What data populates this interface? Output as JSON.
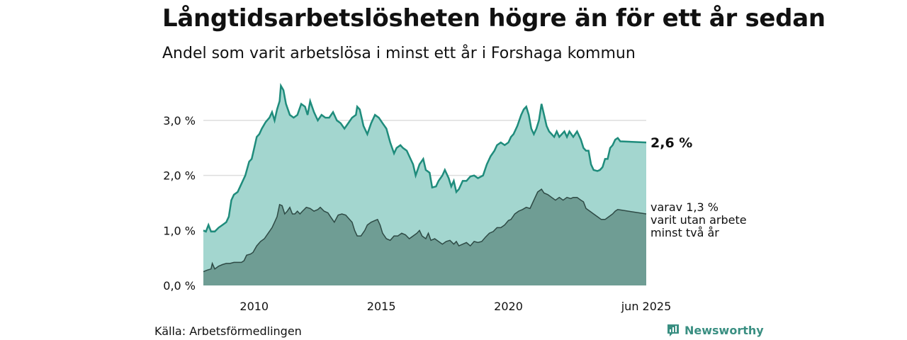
{
  "header": {
    "title": "Långtidsarbetslösheten högre än för ett år sedan",
    "subtitle": "Andel som varit arbetslösa i minst ett år i Forshaga kommun"
  },
  "footer": {
    "source": "Källa: Arbetsförmedlingen",
    "brand": "Newsworthy",
    "brand_icon": "bar-chart-bubble-icon"
  },
  "colors": {
    "series1_fill": "#a3d6cf",
    "series1_line": "#1f8c7c",
    "series2_fill": "#6f9d94",
    "series2_line": "#2e4a45",
    "grid": "#dddddd",
    "brand": "#3a8f82"
  },
  "chart_data": {
    "type": "area",
    "xlim": [
      2008.0,
      2025.42
    ],
    "ylim": [
      0,
      3.0
    ],
    "grid": true,
    "y_ticks": [
      {
        "value": 0,
        "label": "0,0 %"
      },
      {
        "value": 1,
        "label": "1,0 %"
      },
      {
        "value": 2,
        "label": "2,0 %"
      },
      {
        "value": 3,
        "label": "3,0 %"
      }
    ],
    "x_ticks": [
      {
        "value": 2010,
        "label": "2010"
      },
      {
        "value": 2015,
        "label": "2015"
      },
      {
        "value": 2020,
        "label": "2020"
      },
      {
        "value": 2025.42,
        "label": "jun 2025"
      }
    ],
    "end_label": "2,6 %",
    "sub_label_lines": [
      "varav 1,3 %",
      "varit utan arbete",
      "minst två år"
    ],
    "series": [
      {
        "points": [
          [
            2008.0,
            1.0
          ],
          [
            2008.1,
            0.98
          ],
          [
            2008.2,
            1.1
          ],
          [
            2008.3,
            0.98
          ],
          [
            2008.45,
            0.98
          ],
          [
            2008.6,
            1.05
          ],
          [
            2008.75,
            1.1
          ],
          [
            2008.9,
            1.15
          ],
          [
            2009.0,
            1.25
          ],
          [
            2009.1,
            1.55
          ],
          [
            2009.2,
            1.65
          ],
          [
            2009.35,
            1.7
          ],
          [
            2009.5,
            1.85
          ],
          [
            2009.65,
            2.0
          ],
          [
            2009.8,
            2.25
          ],
          [
            2009.9,
            2.3
          ],
          [
            2010.0,
            2.5
          ],
          [
            2010.1,
            2.7
          ],
          [
            2010.2,
            2.75
          ],
          [
            2010.3,
            2.85
          ],
          [
            2010.45,
            2.97
          ],
          [
            2010.6,
            3.05
          ],
          [
            2010.7,
            3.15
          ],
          [
            2010.8,
            3.0
          ],
          [
            2010.9,
            3.2
          ],
          [
            2011.0,
            3.35
          ],
          [
            2011.05,
            3.63
          ],
          [
            2011.15,
            3.55
          ],
          [
            2011.25,
            3.3
          ],
          [
            2011.4,
            3.1
          ],
          [
            2011.55,
            3.05
          ],
          [
            2011.7,
            3.1
          ],
          [
            2011.85,
            3.3
          ],
          [
            2012.0,
            3.25
          ],
          [
            2012.1,
            3.1
          ],
          [
            2012.2,
            3.35
          ],
          [
            2012.35,
            3.15
          ],
          [
            2012.5,
            3.0
          ],
          [
            2012.65,
            3.1
          ],
          [
            2012.8,
            3.05
          ],
          [
            2012.95,
            3.05
          ],
          [
            2013.1,
            3.15
          ],
          [
            2013.25,
            3.0
          ],
          [
            2013.4,
            2.95
          ],
          [
            2013.55,
            2.85
          ],
          [
            2013.7,
            2.95
          ],
          [
            2013.85,
            3.05
          ],
          [
            2014.0,
            3.1
          ],
          [
            2014.05,
            3.25
          ],
          [
            2014.15,
            3.2
          ],
          [
            2014.3,
            2.9
          ],
          [
            2014.45,
            2.75
          ],
          [
            2014.6,
            2.95
          ],
          [
            2014.75,
            3.1
          ],
          [
            2014.9,
            3.05
          ],
          [
            2015.05,
            2.95
          ],
          [
            2015.2,
            2.85
          ],
          [
            2015.35,
            2.6
          ],
          [
            2015.5,
            2.4
          ],
          [
            2015.6,
            2.5
          ],
          [
            2015.75,
            2.55
          ],
          [
            2015.85,
            2.5
          ],
          [
            2016.0,
            2.45
          ],
          [
            2016.1,
            2.35
          ],
          [
            2016.25,
            2.2
          ],
          [
            2016.35,
            2.0
          ],
          [
            2016.5,
            2.2
          ],
          [
            2016.65,
            2.3
          ],
          [
            2016.75,
            2.1
          ],
          [
            2016.9,
            2.05
          ],
          [
            2017.0,
            1.78
          ],
          [
            2017.15,
            1.8
          ],
          [
            2017.25,
            1.9
          ],
          [
            2017.4,
            2.0
          ],
          [
            2017.5,
            2.1
          ],
          [
            2017.65,
            1.95
          ],
          [
            2017.75,
            1.8
          ],
          [
            2017.85,
            1.9
          ],
          [
            2017.95,
            1.7
          ],
          [
            2018.05,
            1.75
          ],
          [
            2018.2,
            1.9
          ],
          [
            2018.35,
            1.9
          ],
          [
            2018.5,
            1.98
          ],
          [
            2018.65,
            2.0
          ],
          [
            2018.8,
            1.95
          ],
          [
            2019.0,
            2.0
          ],
          [
            2019.15,
            2.2
          ],
          [
            2019.3,
            2.35
          ],
          [
            2019.45,
            2.45
          ],
          [
            2019.55,
            2.55
          ],
          [
            2019.7,
            2.6
          ],
          [
            2019.85,
            2.55
          ],
          [
            2020.0,
            2.6
          ],
          [
            2020.1,
            2.7
          ],
          [
            2020.2,
            2.75
          ],
          [
            2020.35,
            2.9
          ],
          [
            2020.5,
            3.1
          ],
          [
            2020.6,
            3.2
          ],
          [
            2020.7,
            3.25
          ],
          [
            2020.8,
            3.1
          ],
          [
            2020.9,
            2.85
          ],
          [
            2021.0,
            2.75
          ],
          [
            2021.1,
            2.85
          ],
          [
            2021.2,
            3.0
          ],
          [
            2021.3,
            3.3
          ],
          [
            2021.4,
            3.1
          ],
          [
            2021.5,
            2.9
          ],
          [
            2021.6,
            2.8
          ],
          [
            2021.7,
            2.75
          ],
          [
            2021.8,
            2.7
          ],
          [
            2021.9,
            2.8
          ],
          [
            2022.0,
            2.7
          ],
          [
            2022.1,
            2.75
          ],
          [
            2022.2,
            2.8
          ],
          [
            2022.3,
            2.7
          ],
          [
            2022.4,
            2.8
          ],
          [
            2022.55,
            2.7
          ],
          [
            2022.7,
            2.8
          ],
          [
            2022.85,
            2.65
          ],
          [
            2022.95,
            2.5
          ],
          [
            2023.05,
            2.45
          ],
          [
            2023.15,
            2.45
          ],
          [
            2023.25,
            2.2
          ],
          [
            2023.35,
            2.1
          ],
          [
            2023.5,
            2.08
          ],
          [
            2023.6,
            2.1
          ],
          [
            2023.7,
            2.15
          ],
          [
            2023.8,
            2.3
          ],
          [
            2023.9,
            2.3
          ],
          [
            2024.0,
            2.5
          ],
          [
            2024.1,
            2.55
          ],
          [
            2024.2,
            2.65
          ],
          [
            2024.3,
            2.68
          ],
          [
            2024.4,
            2.62
          ],
          [
            2025.42,
            2.6
          ]
        ]
      },
      {
        "points": [
          [
            2008.0,
            0.25
          ],
          [
            2008.15,
            0.28
          ],
          [
            2008.3,
            0.3
          ],
          [
            2008.35,
            0.4
          ],
          [
            2008.45,
            0.3
          ],
          [
            2008.6,
            0.35
          ],
          [
            2008.75,
            0.38
          ],
          [
            2008.9,
            0.4
          ],
          [
            2009.05,
            0.4
          ],
          [
            2009.2,
            0.42
          ],
          [
            2009.35,
            0.42
          ],
          [
            2009.5,
            0.42
          ],
          [
            2009.6,
            0.45
          ],
          [
            2009.7,
            0.55
          ],
          [
            2009.85,
            0.57
          ],
          [
            2009.95,
            0.6
          ],
          [
            2010.1,
            0.72
          ],
          [
            2010.25,
            0.8
          ],
          [
            2010.4,
            0.85
          ],
          [
            2010.55,
            0.95
          ],
          [
            2010.7,
            1.05
          ],
          [
            2010.8,
            1.15
          ],
          [
            2010.9,
            1.25
          ],
          [
            2011.0,
            1.47
          ],
          [
            2011.1,
            1.45
          ],
          [
            2011.2,
            1.3
          ],
          [
            2011.3,
            1.35
          ],
          [
            2011.4,
            1.42
          ],
          [
            2011.5,
            1.3
          ],
          [
            2011.6,
            1.3
          ],
          [
            2011.7,
            1.35
          ],
          [
            2011.8,
            1.3
          ],
          [
            2011.9,
            1.35
          ],
          [
            2012.05,
            1.42
          ],
          [
            2012.2,
            1.4
          ],
          [
            2012.35,
            1.35
          ],
          [
            2012.5,
            1.38
          ],
          [
            2012.6,
            1.42
          ],
          [
            2012.75,
            1.35
          ],
          [
            2012.9,
            1.32
          ],
          [
            2013.0,
            1.25
          ],
          [
            2013.15,
            1.15
          ],
          [
            2013.3,
            1.28
          ],
          [
            2013.45,
            1.3
          ],
          [
            2013.6,
            1.28
          ],
          [
            2013.75,
            1.2
          ],
          [
            2013.85,
            1.15
          ],
          [
            2013.95,
            1.0
          ],
          [
            2014.05,
            0.9
          ],
          [
            2014.2,
            0.9
          ],
          [
            2014.35,
            1.0
          ],
          [
            2014.45,
            1.1
          ],
          [
            2014.6,
            1.15
          ],
          [
            2014.75,
            1.18
          ],
          [
            2014.85,
            1.2
          ],
          [
            2014.95,
            1.1
          ],
          [
            2015.05,
            0.95
          ],
          [
            2015.2,
            0.85
          ],
          [
            2015.35,
            0.82
          ],
          [
            2015.5,
            0.9
          ],
          [
            2015.65,
            0.9
          ],
          [
            2015.8,
            0.95
          ],
          [
            2015.95,
            0.92
          ],
          [
            2016.1,
            0.85
          ],
          [
            2016.25,
            0.9
          ],
          [
            2016.4,
            0.95
          ],
          [
            2016.5,
            1.0
          ],
          [
            2016.6,
            0.9
          ],
          [
            2016.75,
            0.85
          ],
          [
            2016.85,
            0.95
          ],
          [
            2016.95,
            0.82
          ],
          [
            2017.1,
            0.85
          ],
          [
            2017.25,
            0.8
          ],
          [
            2017.4,
            0.75
          ],
          [
            2017.55,
            0.8
          ],
          [
            2017.7,
            0.82
          ],
          [
            2017.85,
            0.75
          ],
          [
            2017.95,
            0.8
          ],
          [
            2018.05,
            0.72
          ],
          [
            2018.2,
            0.75
          ],
          [
            2018.35,
            0.78
          ],
          [
            2018.5,
            0.72
          ],
          [
            2018.65,
            0.8
          ],
          [
            2018.8,
            0.78
          ],
          [
            2018.95,
            0.8
          ],
          [
            2019.1,
            0.88
          ],
          [
            2019.25,
            0.95
          ],
          [
            2019.4,
            0.98
          ],
          [
            2019.55,
            1.05
          ],
          [
            2019.7,
            1.05
          ],
          [
            2019.85,
            1.1
          ],
          [
            2020.0,
            1.18
          ],
          [
            2020.1,
            1.2
          ],
          [
            2020.25,
            1.3
          ],
          [
            2020.4,
            1.35
          ],
          [
            2020.55,
            1.38
          ],
          [
            2020.7,
            1.42
          ],
          [
            2020.85,
            1.4
          ],
          [
            2020.95,
            1.5
          ],
          [
            2021.05,
            1.6
          ],
          [
            2021.15,
            1.7
          ],
          [
            2021.3,
            1.75
          ],
          [
            2021.4,
            1.68
          ],
          [
            2021.55,
            1.65
          ],
          [
            2021.7,
            1.6
          ],
          [
            2021.85,
            1.55
          ],
          [
            2022.0,
            1.6
          ],
          [
            2022.15,
            1.55
          ],
          [
            2022.3,
            1.6
          ],
          [
            2022.45,
            1.58
          ],
          [
            2022.55,
            1.6
          ],
          [
            2022.7,
            1.6
          ],
          [
            2022.85,
            1.55
          ],
          [
            2022.95,
            1.52
          ],
          [
            2023.05,
            1.4
          ],
          [
            2023.2,
            1.35
          ],
          [
            2023.35,
            1.3
          ],
          [
            2023.5,
            1.25
          ],
          [
            2023.65,
            1.2
          ],
          [
            2023.8,
            1.2
          ],
          [
            2023.95,
            1.25
          ],
          [
            2024.1,
            1.3
          ],
          [
            2024.2,
            1.35
          ],
          [
            2024.3,
            1.38
          ],
          [
            2025.42,
            1.3
          ]
        ]
      }
    ]
  }
}
